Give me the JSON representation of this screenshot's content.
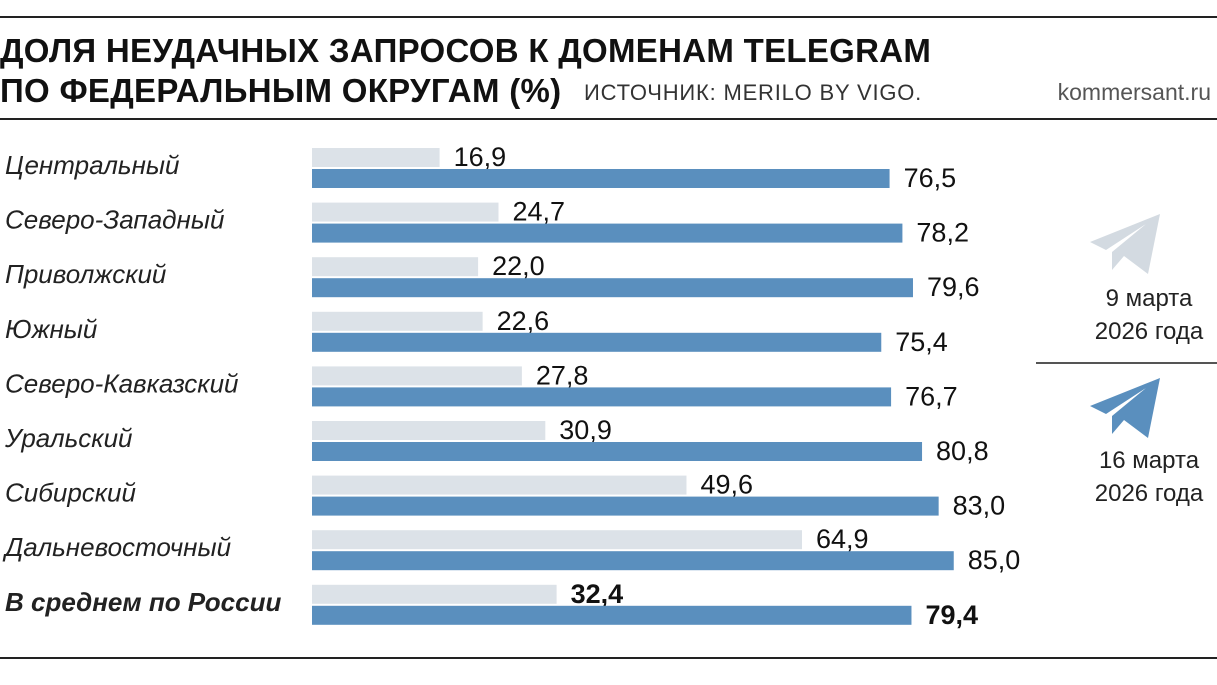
{
  "header": {
    "title_line1": "ДОЛЯ НЕУДАЧНЫХ ЗАПРОСОВ К ДОМЕНАМ TELEGRAM",
    "title_line2": "ПО ФЕДЕРАЛЬНЫМ ОКРУГАМ (%)",
    "source": "ИСТОЧНИК: MERILO BY VIGO.",
    "site": "kommersant.ru"
  },
  "legend": {
    "items": [
      {
        "line1": "9 марта",
        "line2": "2026 года",
        "color": "#d9dfe5",
        "icon": "telegram-plane-icon"
      },
      {
        "line1": "16 марта",
        "line2": "2026 года",
        "color": "#5b8ebd",
        "icon": "telegram-plane-icon"
      }
    ]
  },
  "colors": {
    "before": "#dce2e8",
    "after": "#5a8fbe",
    "icon_before": "#d3dae1",
    "icon_after": "#5a8fbe"
  },
  "chart_data": {
    "type": "bar",
    "orientation": "horizontal",
    "title": "ДОЛЯ НЕУДАЧНЫХ ЗАПРОСОВ К ДОМЕНАМ TELEGRAM ПО ФЕДЕРАЛЬНЫМ ОКРУГАМ (%)",
    "categories": [
      "Центральный",
      "Северо-Западный",
      "Приволжский",
      "Южный",
      "Северо-Кавказский",
      "Уральский",
      "Сибирский",
      "Дальневосточный",
      "В среднем по России"
    ],
    "series": [
      {
        "name": "9 марта 2026 года",
        "values": [
          16.9,
          24.7,
          22.0,
          22.6,
          27.8,
          30.9,
          49.6,
          64.9,
          32.4
        ],
        "labels": [
          "16,9",
          "24,7",
          "22,0",
          "22,6",
          "27,8",
          "30,9",
          "49,6",
          "64,9",
          "32,4"
        ]
      },
      {
        "name": "16 марта 2026 года",
        "values": [
          76.5,
          78.2,
          79.6,
          75.4,
          76.7,
          80.8,
          83.0,
          85.0,
          79.4
        ],
        "labels": [
          "76,5",
          "78,2",
          "79,6",
          "75,4",
          "76,7",
          "80,8",
          "83,0",
          "85,0",
          "79,4"
        ]
      }
    ],
    "emphasized_category": "В среднем по России",
    "legend_position": "right",
    "grid": false
  }
}
